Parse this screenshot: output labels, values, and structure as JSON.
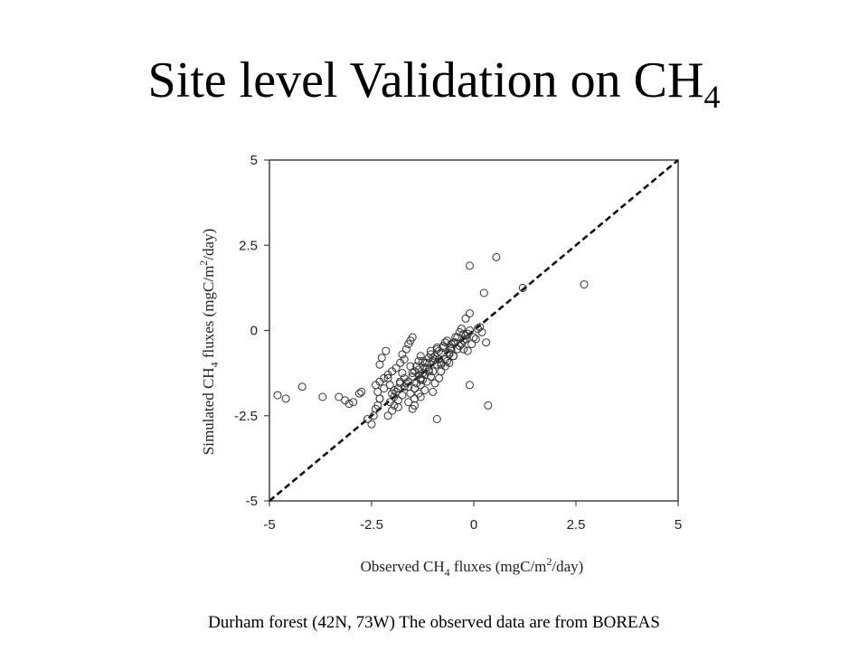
{
  "slide": {
    "title_main": "Site level Validation on CH",
    "title_sub": "4",
    "caption": "Durham forest (42N, 73W) The observed data are from BOREAS"
  },
  "chart_data": {
    "type": "scatter",
    "xlabel_parts": [
      "Observed CH",
      "4",
      " fluxes (mgC/m",
      "2",
      "/day)"
    ],
    "ylabel_parts": [
      "Simulated CH",
      "4",
      " fluxes (mgC/m",
      "2",
      "/day)"
    ],
    "xlim": [
      -5,
      5
    ],
    "ylim": [
      -5,
      5
    ],
    "xticks": [
      -5,
      -2.5,
      0,
      2.5,
      5
    ],
    "xtick_labels": [
      "-5",
      "-2.5",
      "0",
      "2.5",
      "5"
    ],
    "yticks": [
      -5,
      -2.5,
      0,
      2.5,
      5
    ],
    "ytick_labels": [
      "-5",
      "-2.5",
      "0",
      "2.5",
      "5"
    ],
    "grid": false,
    "reference_line": {
      "style": "dashed",
      "x": [
        -5,
        5
      ],
      "y": [
        -5,
        5
      ]
    },
    "marker": "open-circle",
    "x": [
      -4.8,
      -4.6,
      -4.2,
      -3.7,
      -3.3,
      -3.15,
      -3.05,
      -2.95,
      -2.8,
      -2.75,
      -2.6,
      -2.5,
      -2.45,
      -2.4,
      -2.35,
      -2.3,
      -2.35,
      -2.4,
      -2.3,
      -2.2,
      -2.3,
      -2.25,
      -2.15,
      -2.1,
      -2.0,
      -2.05,
      -1.95,
      -1.9,
      -1.85,
      -1.8,
      -2.1,
      -2.0,
      -1.9,
      -1.8,
      -1.7,
      -1.75,
      -1.65,
      -1.6,
      -1.55,
      -1.5,
      -1.95,
      -1.85,
      -1.75,
      -1.7,
      -1.6,
      -1.5,
      -1.45,
      -1.4,
      -1.35,
      -1.3,
      -1.6,
      -1.55,
      -1.45,
      -1.4,
      -1.3,
      -1.25,
      -1.2,
      -1.15,
      -1.1,
      -1.05,
      -1.5,
      -1.45,
      -1.35,
      -1.3,
      -1.25,
      -1.2,
      -1.1,
      -1.0,
      -0.95,
      -0.9,
      -1.3,
      -1.2,
      -1.15,
      -1.05,
      -1.0,
      -0.9,
      -0.85,
      -0.8,
      -0.75,
      -0.7,
      -1.0,
      -0.95,
      -0.85,
      -0.8,
      -0.7,
      -0.65,
      -0.6,
      -0.55,
      -0.5,
      -0.45,
      -0.8,
      -0.7,
      -0.6,
      -0.55,
      -0.45,
      -0.4,
      -0.35,
      -0.3,
      -0.25,
      -0.2,
      -0.6,
      -0.5,
      -0.4,
      -0.3,
      -0.2,
      -0.15,
      -0.1,
      0.0,
      0.1,
      0.2,
      -0.35,
      -0.25,
      -0.15,
      -0.05,
      0.05,
      0.15,
      0.3,
      -2.1,
      -1.75,
      -1.55,
      -1.25,
      -1.05,
      -0.9,
      -0.65,
      -2.3,
      -1.95,
      -1.65,
      -1.35,
      -1.15,
      -0.95,
      -2.2,
      -1.8,
      -1.5,
      -1.2,
      -0.85,
      -0.55,
      -2.05,
      -1.7,
      -1.35,
      -1.0,
      -0.75,
      -2.0,
      -1.6,
      -1.3,
      -1.1,
      -0.8,
      -0.5,
      -0.25,
      -1.85,
      -1.45,
      -0.9,
      -0.1,
      0.35,
      -0.2,
      -0.1,
      0.55,
      0.25,
      1.2,
      2.7,
      -0.1
    ],
    "y": [
      -1.9,
      -2.0,
      -1.65,
      -1.95,
      -1.95,
      -2.05,
      -2.15,
      -2.1,
      -1.85,
      -1.8,
      -2.6,
      -2.75,
      -2.5,
      -2.3,
      -2.2,
      -2.0,
      -1.8,
      -1.6,
      -1.5,
      -1.4,
      -1.0,
      -0.8,
      -0.6,
      -2.5,
      -2.35,
      -2.1,
      -1.95,
      -1.8,
      -1.7,
      -1.55,
      -1.3,
      -1.2,
      -1.1,
      -0.95,
      -0.85,
      -0.7,
      -0.55,
      -0.4,
      -0.3,
      -0.2,
      -2.2,
      -2.05,
      -1.9,
      -1.65,
      -1.5,
      -1.35,
      -1.2,
      -1.05,
      -0.9,
      -0.75,
      -2.1,
      -1.85,
      -1.7,
      -1.55,
      -1.4,
      -1.25,
      -1.1,
      -0.95,
      -0.8,
      -0.6,
      -2.3,
      -2.0,
      -1.85,
      -1.6,
      -1.45,
      -1.3,
      -1.15,
      -0.9,
      -0.75,
      -0.55,
      -1.95,
      -1.75,
      -1.5,
      -1.35,
      -1.2,
      -1.0,
      -0.85,
      -0.65,
      -0.5,
      -0.35,
      -1.8,
      -1.55,
      -1.4,
      -1.2,
      -1.05,
      -0.9,
      -0.7,
      -0.55,
      -0.35,
      -0.2,
      -1.0,
      -0.85,
      -0.65,
      -0.5,
      -0.35,
      -0.2,
      -0.05,
      0.05,
      -0.1,
      -0.15,
      -0.95,
      -0.75,
      -0.55,
      -0.4,
      -0.25,
      -0.1,
      0.0,
      -0.2,
      0.05,
      -0.05,
      -0.45,
      -0.3,
      -0.6,
      -0.4,
      -0.25,
      0.1,
      -0.35,
      -1.4,
      -1.25,
      -1.05,
      -0.9,
      -0.7,
      -0.5,
      -0.3,
      -2.0,
      -1.75,
      -1.55,
      -1.3,
      -1.1,
      -0.85,
      -1.7,
      -1.5,
      -1.25,
      -0.95,
      -0.6,
      -0.4,
      -1.6,
      -1.4,
      -1.15,
      -0.8,
      -0.45,
      -1.85,
      -1.65,
      -1.45,
      -1.2,
      -0.95,
      -0.75,
      -0.55,
      -2.25,
      -2.2,
      -2.6,
      -1.6,
      -2.2,
      0.35,
      0.5,
      2.15,
      1.1,
      1.25,
      1.35,
      1.9
    ]
  }
}
